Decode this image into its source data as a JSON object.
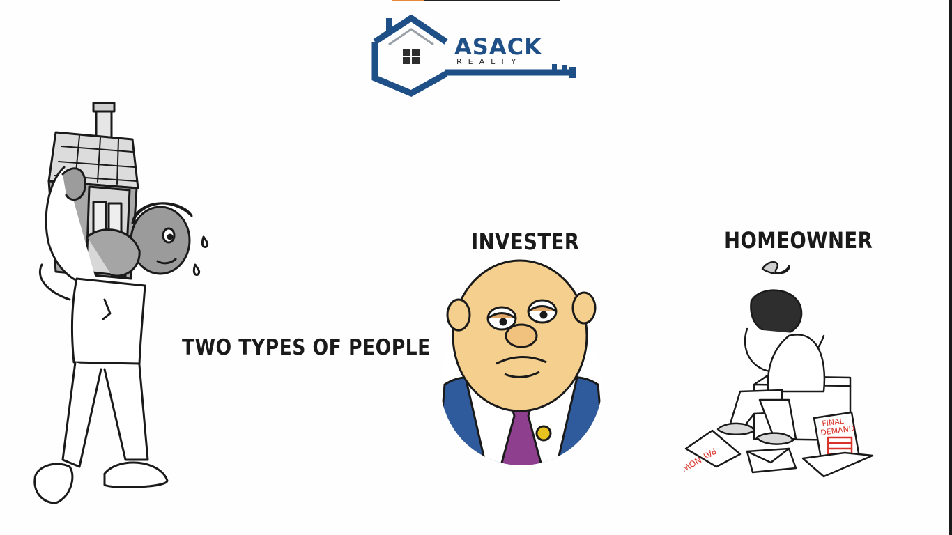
{
  "logo": {
    "name": "ASACK",
    "tagline": "REALTY",
    "brand_color": "#1f4f87"
  },
  "captions": {
    "main": "TWO TYPES OF PEOPLE",
    "investor": "INVESTER",
    "homeowner": "HOMEOWNER"
  },
  "notices": {
    "pay_now": "PAY NOW!",
    "final_demand_line1": "FINAL",
    "final_demand_line2": "DEMAND"
  },
  "colors": {
    "accent_red": "#d9342b",
    "tie_purple": "#8e3f8e",
    "jacket_blue": "#2f5a9c",
    "pin_yellow": "#e8c21f",
    "skin": "#f4cf8e"
  }
}
